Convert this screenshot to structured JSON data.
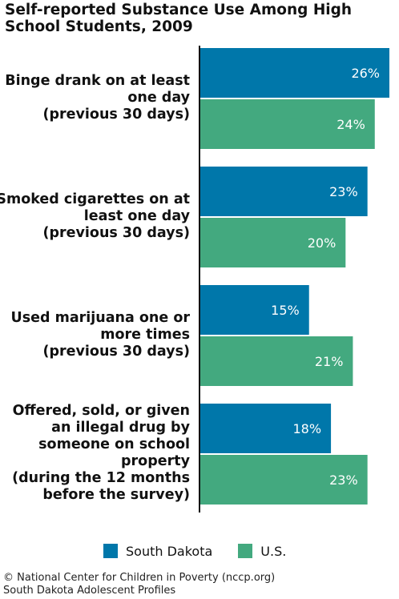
{
  "chart_data": {
    "type": "bar",
    "orientation": "horizontal",
    "title": "Self-reported Substance Use Among High School Students, 2009",
    "categories": [
      [
        "Binge drank on at least",
        "one day",
        "(previous 30 days)"
      ],
      [
        "Smoked cigarettes on at",
        "least one day",
        "(previous 30 days)"
      ],
      [
        "Used marijuana one or",
        "more times",
        "(previous 30 days)"
      ],
      [
        "Offered, sold, or given",
        "an illegal drug by",
        "someone on school",
        "property",
        "(during the 12 months",
        "before the survey)"
      ]
    ],
    "series": [
      {
        "name": "South Dakota",
        "values": [
          26,
          23,
          15,
          18
        ],
        "labels": [
          "26%",
          "23%",
          "15%",
          "18%"
        ],
        "color": "#0077AA"
      },
      {
        "name": "U.S.",
        "values": [
          24,
          20,
          21,
          23
        ],
        "labels": [
          "24%",
          "20%",
          "21%",
          "23%"
        ],
        "color": "#43A97F"
      }
    ],
    "value_unit": "%",
    "xlim": [
      0,
      26
    ],
    "grid": false,
    "legend_position": "bottom"
  },
  "footer": {
    "line1": "© National Center for Children in Poverty (nccp.org)",
    "line2": "South Dakota Adolescent Profiles"
  }
}
